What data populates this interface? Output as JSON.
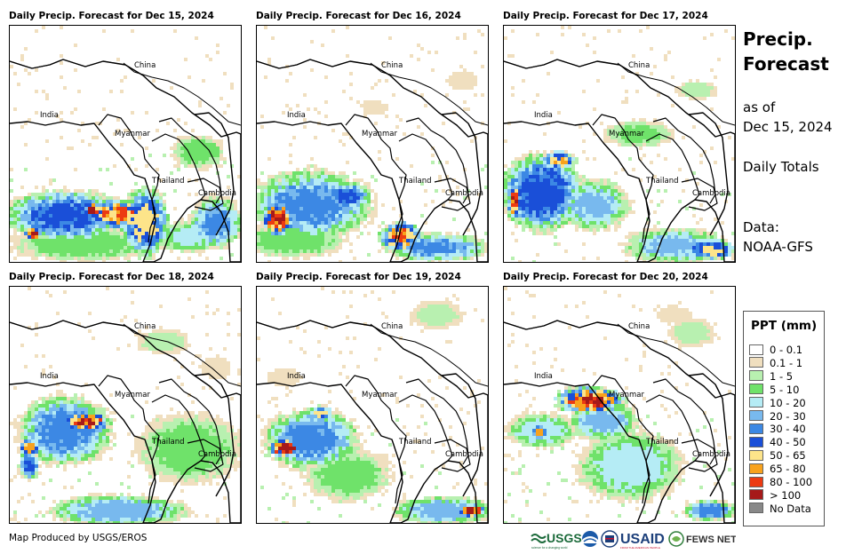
{
  "panels": [
    {
      "title": "Daily Precip. Forecast for Dec 15, 2024",
      "scenario": 0
    },
    {
      "title": "Daily Precip. Forecast for Dec 16, 2024",
      "scenario": 1
    },
    {
      "title": "Daily Precip. Forecast for Dec 17, 2024",
      "scenario": 2
    },
    {
      "title": "Daily Precip. Forecast for Dec 18, 2024",
      "scenario": 3
    },
    {
      "title": "Daily Precip. Forecast for Dec 19, 2024",
      "scenario": 4
    },
    {
      "title": "Daily Precip. Forecast for Dec 20, 2024",
      "scenario": 5
    }
  ],
  "map_labels": {
    "china": "China",
    "india": "India",
    "myanmar": "Myanmar",
    "thailand": "Thailand",
    "cambodia": "Cambodia"
  },
  "side_panel": {
    "title_line1": "Precip.",
    "title_line2": "Forecast",
    "as_of_line1": "as of",
    "as_of_line2": "Dec 15, 2024",
    "totals": "Daily Totals",
    "data_label": "Data:",
    "data_source": "NOAA-GFS"
  },
  "legend": {
    "title": "PPT (mm)",
    "items": [
      {
        "label": "0 - 0.1",
        "color": "#ffffff"
      },
      {
        "label": "0.1 - 1",
        "color": "#f0dfbf"
      },
      {
        "label": "1 - 5",
        "color": "#b8f0b0"
      },
      {
        "label": "5 - 10",
        "color": "#6fe26a"
      },
      {
        "label": "10 - 20",
        "color": "#b5ecf5"
      },
      {
        "label": "20 - 30",
        "color": "#78b9ee"
      },
      {
        "label": "30 - 40",
        "color": "#3c88e4"
      },
      {
        "label": "40 - 50",
        "color": "#1a4fd8"
      },
      {
        "label": "50 - 65",
        "color": "#fde48a"
      },
      {
        "label": "65 - 80",
        "color": "#f8a21d"
      },
      {
        "label": "80 - 100",
        "color": "#ec3b12"
      },
      {
        "label": "> 100",
        "color": "#a61a1a"
      },
      {
        "label": "No Data",
        "color": "#888888"
      }
    ]
  },
  "footer": {
    "credit": "Map Produced by USGS/EROS"
  },
  "logos": {
    "usgs": "USGS",
    "usgs_tagline": "science for a changing world",
    "usaid": "USAID",
    "usaid_tagline": "FROM THE AMERICAN PEOPLE",
    "fewsnet": "FEWS NET"
  }
}
